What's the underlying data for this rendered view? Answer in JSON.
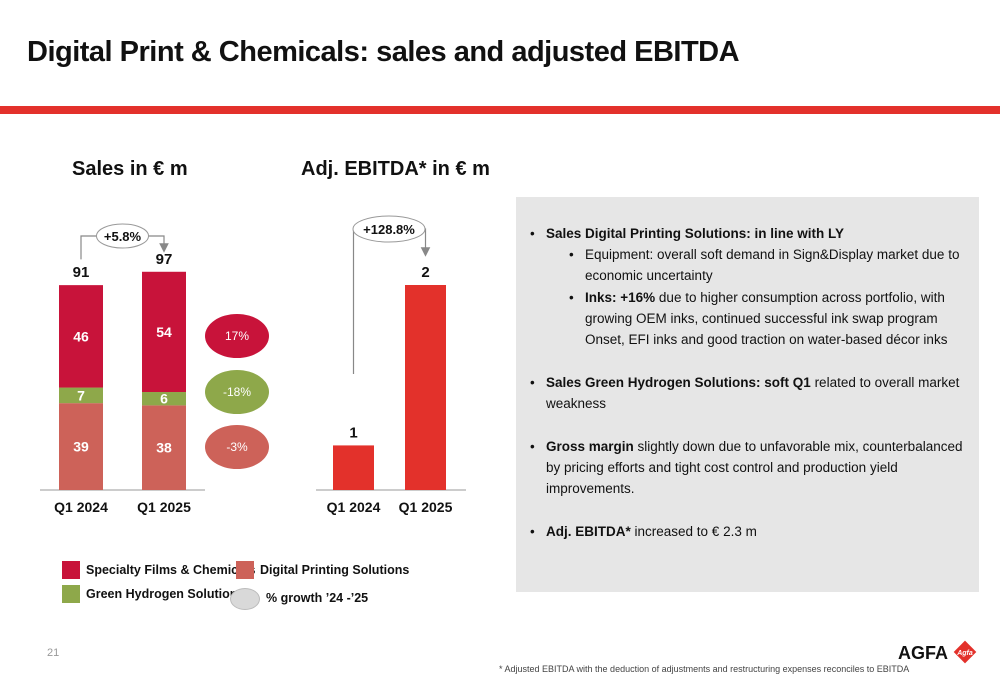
{
  "page": {
    "title": "Digital Print & Chemicals: sales and adjusted EBITDA",
    "page_number": "21",
    "footnote": "* Adjusted EBITDA with the deduction of adjustments and restructuring expenses reconciles to EBITDA",
    "logo_text": "AGFA",
    "logo_badge": "Agfa",
    "colors": {
      "accent_red": "#e3312b",
      "specialty": "#c8133a",
      "digital": "#cd6259",
      "green": "#8ea84a"
    }
  },
  "chart_data": [
    {
      "type": "bar",
      "stacked": true,
      "title": "Sales in € m",
      "categories": [
        "Q1 2024",
        "Q1 2025"
      ],
      "series": [
        {
          "name": "Digital Printing Solutions",
          "values": [
            39,
            38
          ],
          "color": "#cd6259"
        },
        {
          "name": "Green Hydrogen Solutions",
          "values": [
            7,
            6
          ],
          "color": "#8ea84a"
        },
        {
          "name": "Specialty Films & Chemicals",
          "values": [
            46,
            54
          ],
          "color": "#c8133a"
        }
      ],
      "totals": [
        91,
        97
      ],
      "growth_label": "+5.8%",
      "growth_bubbles": [
        {
          "series": "Specialty Films & Chemicals",
          "label": "17%",
          "color": "#c8133a"
        },
        {
          "series": "Green Hydrogen Solutions",
          "label": "-18%",
          "color": "#8ea84a"
        },
        {
          "series": "Digital Printing Solutions",
          "label": "-3%",
          "color": "#cd6259"
        }
      ],
      "ylim": [
        0,
        97
      ]
    },
    {
      "type": "bar",
      "title": "Adj. EBITDA* in € m",
      "categories": [
        "Q1 2024",
        "Q1 2025"
      ],
      "values": [
        1,
        2
      ],
      "color": "#e3312b",
      "growth_label": "+128.8%",
      "ylim": [
        0,
        2
      ]
    }
  ],
  "legend": [
    {
      "label": "Specialty Films & Chemicals",
      "color": "#c8133a"
    },
    {
      "label": "Digital Printing Solutions",
      "color": "#cd6259"
    },
    {
      "label": "Green Hydrogen Solutions",
      "color": "#8ea84a"
    },
    {
      "label": "% growth ’24 -’25",
      "color": "#d9d9d9"
    }
  ],
  "bullets": {
    "b1": {
      "bold": "Sales Digital Printing Solutions: in line with LY",
      "rest": ""
    },
    "b1_sub1": {
      "bold": "",
      "rest": "Equipment: overall soft demand in Sign&Display market due to economic uncertainty"
    },
    "b1_sub2": {
      "bold": "Inks: +16%",
      "rest": " due to higher consumption across portfolio, with growing OEM inks, continued successful ink swap program Onset, EFI inks and good traction on water-based décor inks"
    },
    "b2": {
      "bold": "Sales Green Hydrogen Solutions: soft Q1",
      "rest": " related to overall market weakness"
    },
    "b3": {
      "bold": "Gross margin",
      "rest": " slightly down due to unfavorable mix, counterbalanced by pricing efforts and tight cost control and production yield improvements."
    },
    "b4": {
      "bold": "Adj. EBITDA*",
      "rest": " increased to € 2.3 m"
    },
    "bullet_char": "•"
  }
}
